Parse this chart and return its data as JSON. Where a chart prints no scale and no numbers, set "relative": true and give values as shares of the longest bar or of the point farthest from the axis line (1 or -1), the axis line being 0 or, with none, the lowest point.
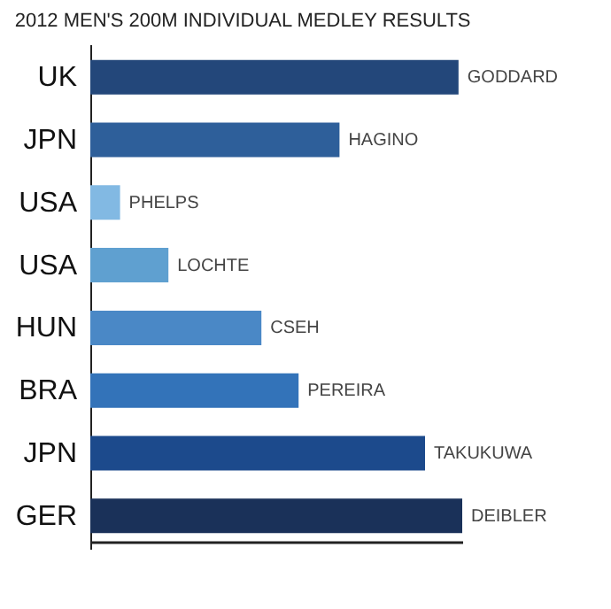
{
  "chart_data": {
    "type": "bar",
    "orientation": "horizontal",
    "relative": true,
    "title": "2012 MEN'S 200M INDIVIDUAL MEDLEY RESULTS",
    "categories": [
      "UK",
      "JPN",
      "USA",
      "USA",
      "HUN",
      "BRA",
      "JPN",
      "GER"
    ],
    "values": [
      0.99,
      0.67,
      0.08,
      0.21,
      0.46,
      0.56,
      0.9,
      1
    ],
    "colors": [
      "#23477a",
      "#2e5f9a",
      "#82b9e3",
      "#5fa0d0",
      "#4a88c6",
      "#3373b9",
      "#1c4a8c",
      "#1a3159"
    ],
    "annotations": [
      "GODDARD",
      "HAGINO",
      "PHELPS",
      "LOCHTE",
      "CSEH",
      "PEREIRA",
      "TAKUKUWA",
      "DEIBLER"
    ]
  }
}
